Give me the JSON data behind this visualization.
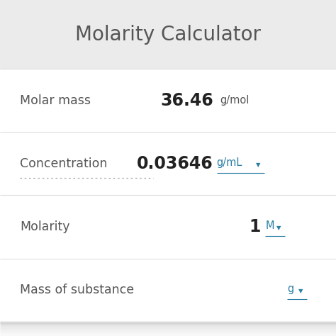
{
  "title": "Molarity Calculator",
  "title_color": "#555555",
  "title_bg": "#ebebeb",
  "body_bg": "#ffffff",
  "rows": [
    {
      "label": "Molar mass",
      "label_color": "#555555",
      "value": "36.46",
      "value_color": "#222222",
      "unit": "g/mol",
      "unit_color": "#555555",
      "unit_underline": false,
      "unit_has_arrow": false,
      "dotted_underline": false,
      "separator_color": "#dddddd"
    },
    {
      "label": "Concentration",
      "label_color": "#555555",
      "value": "0.03646",
      "value_color": "#222222",
      "unit": "g/mL",
      "unit_color": "#2a7fa5",
      "unit_underline": true,
      "unit_has_arrow": true,
      "dotted_underline": true,
      "separator_color": "#dddddd"
    },
    {
      "label": "Molarity",
      "label_color": "#555555",
      "value": "1",
      "value_color": "#222222",
      "unit": "M",
      "unit_color": "#2a7fa5",
      "unit_underline": true,
      "unit_has_arrow": true,
      "dotted_underline": false,
      "separator_color": "#dddddd"
    },
    {
      "label": "Mass of substance",
      "label_color": "#555555",
      "value": "",
      "value_color": "#222222",
      "unit": "g",
      "unit_color": "#2a7fa5",
      "unit_underline": true,
      "unit_has_arrow": true,
      "dotted_underline": false,
      "separator_color": "#dddddd"
    }
  ],
  "fig_width": 4.74,
  "fig_height": 4.74,
  "dpi": 100
}
